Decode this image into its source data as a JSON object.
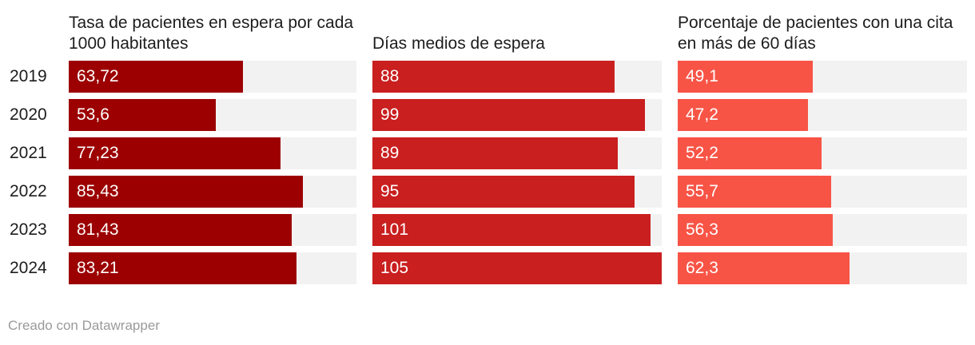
{
  "chart_data": {
    "type": "bar",
    "categories": [
      "2019",
      "2020",
      "2021",
      "2022",
      "2023",
      "2024"
    ],
    "series": [
      {
        "name": "Tasa de pacientes en espera por cada 1000 habitantes",
        "values": [
          63.72,
          53.6,
          77.23,
          85.43,
          81.43,
          83.21
        ],
        "labels": [
          "63,72",
          "53,6",
          "77,23",
          "85,43",
          "81,43",
          "83,21"
        ],
        "max": 105,
        "color": "#9c0000"
      },
      {
        "name": "Días medios de espera",
        "values": [
          88,
          99,
          89,
          95,
          101,
          105
        ],
        "labels": [
          "88",
          "99",
          "89",
          "95",
          "101",
          "105"
        ],
        "max": 105,
        "color": "#c91f1f"
      },
      {
        "name": "Porcentaje de pacientes con una cita en más de 60 días",
        "values": [
          49.1,
          47.2,
          52.2,
          55.7,
          56.3,
          62.3
        ],
        "labels": [
          "49,1",
          "47,2",
          "52,2",
          "55,7",
          "56,3",
          "62,3"
        ],
        "max": 105,
        "color": "#f75446"
      }
    ],
    "track_color": "#f2f2f2"
  },
  "footer": "Creado con Datawrapper"
}
